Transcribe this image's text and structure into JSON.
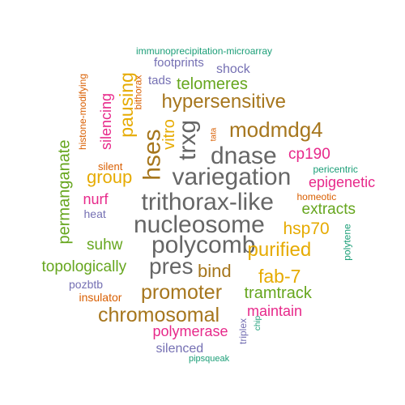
{
  "palette": {
    "teal": "#1b9e77",
    "orange": "#d95f02",
    "purple": "#7570b3",
    "magenta": "#e7298a",
    "green": "#66a61e",
    "gold": "#e6ab02",
    "brown": "#a6761d",
    "gray": "#666666"
  },
  "words": [
    {
      "text": "immunoprecipitation-microarray",
      "color": "#1b9e77",
      "weight": 1,
      "rotated": false
    },
    {
      "text": "footprints",
      "color": "#7570b3",
      "weight": 2,
      "rotated": false
    },
    {
      "text": "shock",
      "color": "#7570b3",
      "weight": 2,
      "rotated": false
    },
    {
      "text": "tads",
      "color": "#7570b3",
      "weight": 2,
      "rotated": false
    },
    {
      "text": "histone-modifying",
      "color": "#d95f02",
      "weight": 1,
      "rotated": true
    },
    {
      "text": "bithorax",
      "color": "#d95f02",
      "weight": 1,
      "rotated": true
    },
    {
      "text": "telomeres",
      "color": "#66a61e",
      "weight": 3,
      "rotated": false
    },
    {
      "text": "pausing",
      "color": "#e6ab02",
      "weight": 3,
      "rotated": true
    },
    {
      "text": "silencing",
      "color": "#e7298a",
      "weight": 2,
      "rotated": true
    },
    {
      "text": "hypersensitive",
      "color": "#a6761d",
      "weight": 5,
      "rotated": false
    },
    {
      "text": "trxg",
      "color": "#666666",
      "weight": 5,
      "rotated": true
    },
    {
      "text": "vitro",
      "color": "#e6ab02",
      "weight": 3,
      "rotated": true
    },
    {
      "text": "modmdg4",
      "color": "#a6761d",
      "weight": 5,
      "rotated": false
    },
    {
      "text": "tata",
      "color": "#d95f02",
      "weight": 1,
      "rotated": true
    },
    {
      "text": "permanganate",
      "color": "#66a61e",
      "weight": 3,
      "rotated": true
    },
    {
      "text": "hses",
      "color": "#a6761d",
      "weight": 5,
      "rotated": true
    },
    {
      "text": "dnase",
      "color": "#666666",
      "weight": 5,
      "rotated": false
    },
    {
      "text": "cp190",
      "color": "#e7298a",
      "weight": 3,
      "rotated": false
    },
    {
      "text": "silent",
      "color": "#d95f02",
      "weight": 1,
      "rotated": false
    },
    {
      "text": "pericentric",
      "color": "#1b9e77",
      "weight": 1,
      "rotated": false
    },
    {
      "text": "group",
      "color": "#e6ab02",
      "weight": 3,
      "rotated": false
    },
    {
      "text": "variegation",
      "color": "#666666",
      "weight": 6,
      "rotated": false
    },
    {
      "text": "epigenetic",
      "color": "#e7298a",
      "weight": 3,
      "rotated": false
    },
    {
      "text": "homeotic",
      "color": "#d95f02",
      "weight": 1,
      "rotated": false
    },
    {
      "text": "nurf",
      "color": "#e7298a",
      "weight": 3,
      "rotated": false
    },
    {
      "text": "trithorax-like",
      "color": "#666666",
      "weight": 6,
      "rotated": false
    },
    {
      "text": "extracts",
      "color": "#66a61e",
      "weight": 3,
      "rotated": false
    },
    {
      "text": "heat",
      "color": "#7570b3",
      "weight": 2,
      "rotated": false
    },
    {
      "text": "nucleosome",
      "color": "#666666",
      "weight": 6,
      "rotated": false
    },
    {
      "text": "hsp70",
      "color": "#e6ab02",
      "weight": 3,
      "rotated": false
    },
    {
      "text": "polytene",
      "color": "#1b9e77",
      "weight": 1,
      "rotated": true
    },
    {
      "text": "suhw",
      "color": "#66a61e",
      "weight": 3,
      "rotated": false
    },
    {
      "text": "polycomb",
      "color": "#666666",
      "weight": 6,
      "rotated": false
    },
    {
      "text": "purified",
      "color": "#e6ab02",
      "weight": 4,
      "rotated": false
    },
    {
      "text": "topologically",
      "color": "#66a61e",
      "weight": 3,
      "rotated": false
    },
    {
      "text": "pres",
      "color": "#666666",
      "weight": 5,
      "rotated": false
    },
    {
      "text": "bind",
      "color": "#a6761d",
      "weight": 4,
      "rotated": false
    },
    {
      "text": "fab-7",
      "color": "#e6ab02",
      "weight": 4,
      "rotated": false
    },
    {
      "text": "pozbtb",
      "color": "#7570b3",
      "weight": 2,
      "rotated": false
    },
    {
      "text": "promoter",
      "color": "#a6761d",
      "weight": 5,
      "rotated": false
    },
    {
      "text": "tramtrack",
      "color": "#66a61e",
      "weight": 3,
      "rotated": false
    },
    {
      "text": "insulator",
      "color": "#d95f02",
      "weight": 2,
      "rotated": false
    },
    {
      "text": "chromosomal",
      "color": "#a6761d",
      "weight": 5,
      "rotated": false
    },
    {
      "text": "maintain",
      "color": "#e7298a",
      "weight": 3,
      "rotated": false
    },
    {
      "text": "polymerase",
      "color": "#e7298a",
      "weight": 3,
      "rotated": false
    },
    {
      "text": "triplex",
      "color": "#7570b3",
      "weight": 1,
      "rotated": true
    },
    {
      "text": "chip",
      "color": "#1b9e77",
      "weight": 1,
      "rotated": true
    },
    {
      "text": "silenced",
      "color": "#7570b3",
      "weight": 3,
      "rotated": false
    },
    {
      "text": "pipsqueak",
      "color": "#1b9e77",
      "weight": 1,
      "rotated": false
    }
  ]
}
